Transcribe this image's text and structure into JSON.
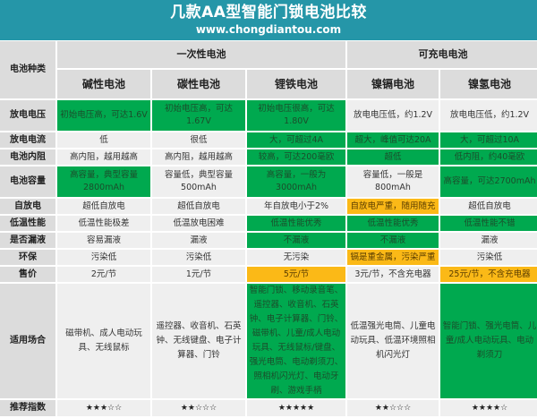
{
  "header": {
    "title": "几款AA型智能门锁电池比较",
    "url": "www.chongdiantou.com"
  },
  "table": {
    "corner_label": "电池种类",
    "groups": [
      {
        "label": "一次性电池",
        "span": 3
      },
      {
        "label": "可充电电池",
        "span": 2
      }
    ],
    "columns": [
      "碱性电池",
      "碳性电池",
      "锂铁电池",
      "镍镉电池",
      "镍氢电池"
    ],
    "rows": [
      {
        "label": "放电电压",
        "cells": [
          {
            "text": "初始电压高，可达1.6V",
            "color": "green"
          },
          {
            "text": "初始电压高，可达1.67V",
            "color": "green"
          },
          {
            "text": "初始电压很高，可达1.80V",
            "color": "green"
          },
          {
            "text": "放电电压低，约1.2V",
            "color": "none"
          },
          {
            "text": "放电电压低，约1.2V",
            "color": "none"
          }
        ]
      },
      {
        "label": "放电电流",
        "cells": [
          {
            "text": "低",
            "color": "none"
          },
          {
            "text": "很低",
            "color": "none"
          },
          {
            "text": "大，可超过4A",
            "color": "green"
          },
          {
            "text": "超大，峰值可达20A",
            "color": "green"
          },
          {
            "text": "大，可超过10A",
            "color": "green"
          }
        ]
      },
      {
        "label": "电池内阻",
        "cells": [
          {
            "text": "高内阻，越用越高",
            "color": "none"
          },
          {
            "text": "高内阻，越用越高",
            "color": "none"
          },
          {
            "text": "较高，可达200毫欧",
            "color": "green"
          },
          {
            "text": "超低",
            "color": "green"
          },
          {
            "text": "低内阻，约40毫欧",
            "color": "green"
          }
        ]
      },
      {
        "label": "电池容量",
        "cells": [
          {
            "text": "高容量，典型容量2800mAh",
            "color": "green"
          },
          {
            "text": "容量低，典型容量500mAh",
            "color": "none"
          },
          {
            "text": "高容量，一般为3000mAh",
            "color": "green"
          },
          {
            "text": "容量低，一般是800mAh",
            "color": "none"
          },
          {
            "text": "高容量，可达2700mAh",
            "color": "green"
          }
        ]
      },
      {
        "label": "自放电",
        "cells": [
          {
            "text": "超低自放电",
            "color": "none"
          },
          {
            "text": "超低自放电",
            "color": "none"
          },
          {
            "text": "年自放电小于2%",
            "color": "none"
          },
          {
            "text": "自放电严重，随用随充",
            "color": "orange"
          },
          {
            "text": "超低自放电",
            "color": "none"
          }
        ]
      },
      {
        "label": "低温性能",
        "cells": [
          {
            "text": "低温性能极差",
            "color": "none"
          },
          {
            "text": "低温放电困难",
            "color": "none"
          },
          {
            "text": "低温性能优秀",
            "color": "green"
          },
          {
            "text": "低温性能优秀",
            "color": "green"
          },
          {
            "text": "低温性能不错",
            "color": "green"
          }
        ]
      },
      {
        "label": "是否漏液",
        "cells": [
          {
            "text": "容易漏液",
            "color": "none"
          },
          {
            "text": "漏液",
            "color": "none"
          },
          {
            "text": "不漏液",
            "color": "green"
          },
          {
            "text": "不漏液",
            "color": "green"
          },
          {
            "text": "漏液",
            "color": "none"
          }
        ]
      },
      {
        "label": "环保",
        "cells": [
          {
            "text": "污染低",
            "color": "none"
          },
          {
            "text": "污染低",
            "color": "none"
          },
          {
            "text": "无污染",
            "color": "none"
          },
          {
            "text": "镉是重金属，污染严重",
            "color": "orange"
          },
          {
            "text": "污染低",
            "color": "none"
          }
        ]
      },
      {
        "label": "售价",
        "cells": [
          {
            "text": "2元/节",
            "color": "none"
          },
          {
            "text": "1元/节",
            "color": "none"
          },
          {
            "text": "5元/节",
            "color": "orange"
          },
          {
            "text": "3元/节，不含充电器",
            "color": "none"
          },
          {
            "text": "25元/节，不含充电器",
            "color": "orange"
          }
        ]
      },
      {
        "label": "适用场合",
        "cells": [
          {
            "text": "磁带机、成人电动玩具、无线鼠标",
            "color": "none"
          },
          {
            "text": "遥控器、收音机、石英钟、无线键盘、电子计算器、门铃",
            "color": "none"
          },
          {
            "text": "智能门锁、移动录音笔、遥控器、收音机、石英钟、电子计算器、门铃、磁带机、儿童/成人电动玩具、无线鼠标/键盘、强光电筒、电动剃须刀、照相机闪光灯、电动牙刷、游戏手柄",
            "color": "green"
          },
          {
            "text": "低温强光电筒、儿童电动玩具、低温环境照相机闪光灯",
            "color": "none"
          },
          {
            "text": "智能门锁、强光电筒、儿童/成人电动玩具、电动剃须刀",
            "color": "green"
          }
        ]
      },
      {
        "label": "推荐指数",
        "cells": [
          {
            "text": "★★★☆☆",
            "color": "none"
          },
          {
            "text": "★★☆☆☆",
            "color": "none"
          },
          {
            "text": "★★★★★",
            "color": "none"
          },
          {
            "text": "★★☆☆☆",
            "color": "none"
          },
          {
            "text": "★★★★☆",
            "color": "none"
          }
        ]
      }
    ]
  },
  "colors": {
    "header_bg": "#2596a8",
    "green": "#00a94f",
    "orange": "#fbb917",
    "cell_bg": "#efefef",
    "label_bg": "#dcdcdc"
  }
}
